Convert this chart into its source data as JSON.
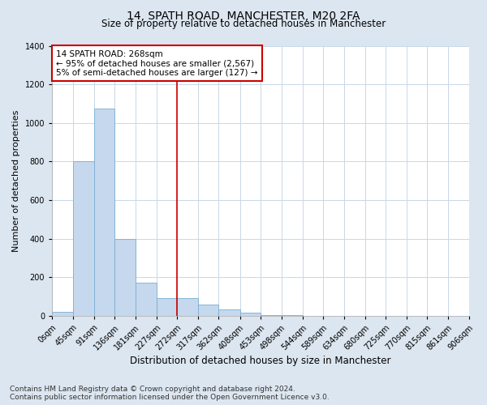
{
  "title": "14, SPATH ROAD, MANCHESTER, M20 2FA",
  "subtitle": "Size of property relative to detached houses in Manchester",
  "xlabel": "Distribution of detached houses by size in Manchester",
  "ylabel": "Number of detached properties",
  "bin_edges": [
    0,
    45,
    91,
    136,
    181,
    227,
    272,
    317,
    362,
    408,
    453,
    498,
    544,
    589,
    634,
    680,
    725,
    770,
    815,
    861,
    906
  ],
  "bar_heights": [
    20,
    800,
    1075,
    400,
    170,
    90,
    90,
    60,
    35,
    15,
    5,
    5,
    0,
    0,
    0,
    0,
    0,
    0,
    0,
    0
  ],
  "bar_color": "#c5d8ed",
  "bar_edge_color": "#7aafd4",
  "vline_x": 272,
  "vline_color": "#cc0000",
  "annotation_line1": "14 SPATH ROAD: 268sqm",
  "annotation_line2": "← 95% of detached houses are smaller (2,567)",
  "annotation_line3": "5% of semi-detached houses are larger (127) →",
  "annotation_box_color": "#ffffff",
  "annotation_box_edge_color": "#cc0000",
  "ylim": [
    0,
    1400
  ],
  "yticks": [
    0,
    200,
    400,
    600,
    800,
    1000,
    1200,
    1400
  ],
  "xlim": [
    0,
    906
  ],
  "fig_bg_color": "#dce6f0",
  "plot_bg_color": "#ffffff",
  "grid_color": "#c8d8e8",
  "footer_line1": "Contains HM Land Registry data © Crown copyright and database right 2024.",
  "footer_line2": "Contains public sector information licensed under the Open Government Licence v3.0.",
  "title_fontsize": 10,
  "subtitle_fontsize": 8.5,
  "xlabel_fontsize": 8.5,
  "ylabel_fontsize": 8,
  "tick_label_fontsize": 7,
  "annotation_fontsize": 7.5,
  "footer_fontsize": 6.5
}
